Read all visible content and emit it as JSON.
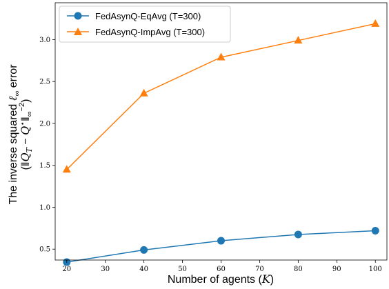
{
  "chart_data": {
    "type": "line",
    "x": [
      20,
      40,
      60,
      80,
      100
    ],
    "xlim": [
      17,
      103
    ],
    "ylim": [
      0.37,
      3.44
    ],
    "xticks": [
      20,
      30,
      40,
      50,
      60,
      70,
      80,
      90,
      100
    ],
    "yticks": [
      0.5,
      1.0,
      1.5,
      2.0,
      2.5,
      3.0
    ],
    "xtick_labels": [
      "20",
      "30",
      "40",
      "50",
      "60",
      "70",
      "80",
      "90",
      "100"
    ],
    "ytick_labels": [
      "0.5",
      "1.0",
      "1.5",
      "2.0",
      "2.5",
      "3.0"
    ],
    "xlabel": "Number of agents (K)",
    "ylabel_line1": "The inverse squared ℓ∞ error",
    "ylabel_line2": "(‖Q_T − Q*‖∞^−2)",
    "grid": false,
    "legend_position": "upper-left",
    "series": [
      {
        "name": "FedAsynQ-EqAvg (T=300)",
        "values": [
          0.345,
          0.49,
          0.6,
          0.675,
          0.72
        ],
        "color": "#1f77b4",
        "marker": "circle"
      },
      {
        "name": "FedAsynQ-ImpAvg (T=300)",
        "values": [
          1.45,
          2.36,
          2.79,
          2.99,
          3.19
        ],
        "color": "#ff7f0e",
        "marker": "triangle"
      }
    ]
  }
}
